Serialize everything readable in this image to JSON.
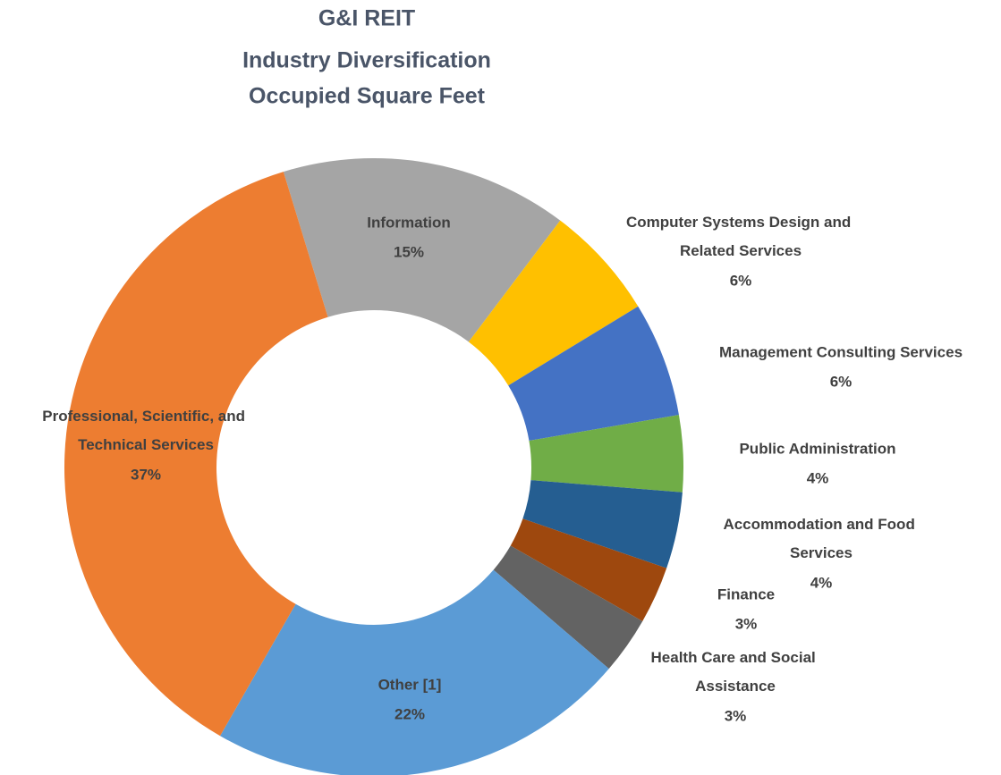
{
  "chart_data": {
    "type": "donut",
    "title": [
      "G&I REIT",
      "Industry Diversification",
      "Occupied Square Feet"
    ],
    "categories": [
      "Information",
      "Computer Systems Design and Related Services",
      "Management Consulting Services",
      "Public Administration",
      "Accommodation and Food Services",
      "Finance",
      "Health Care and Social Assistance",
      "Other [1]",
      "Professional, Scientific, and Technical Services"
    ],
    "values": [
      15,
      6,
      6,
      4,
      4,
      3,
      3,
      22,
      37
    ],
    "value_labels": [
      "15%",
      "6%",
      "6%",
      "4%",
      "4%",
      "3%",
      "3%",
      "22%",
      "37%"
    ],
    "colors": [
      "#a5a5a5",
      "#ffc000",
      "#4472c4",
      "#70ad47",
      "#255e91",
      "#9e480e",
      "#636363",
      "#5b9bd5",
      "#ed7d31"
    ]
  }
}
